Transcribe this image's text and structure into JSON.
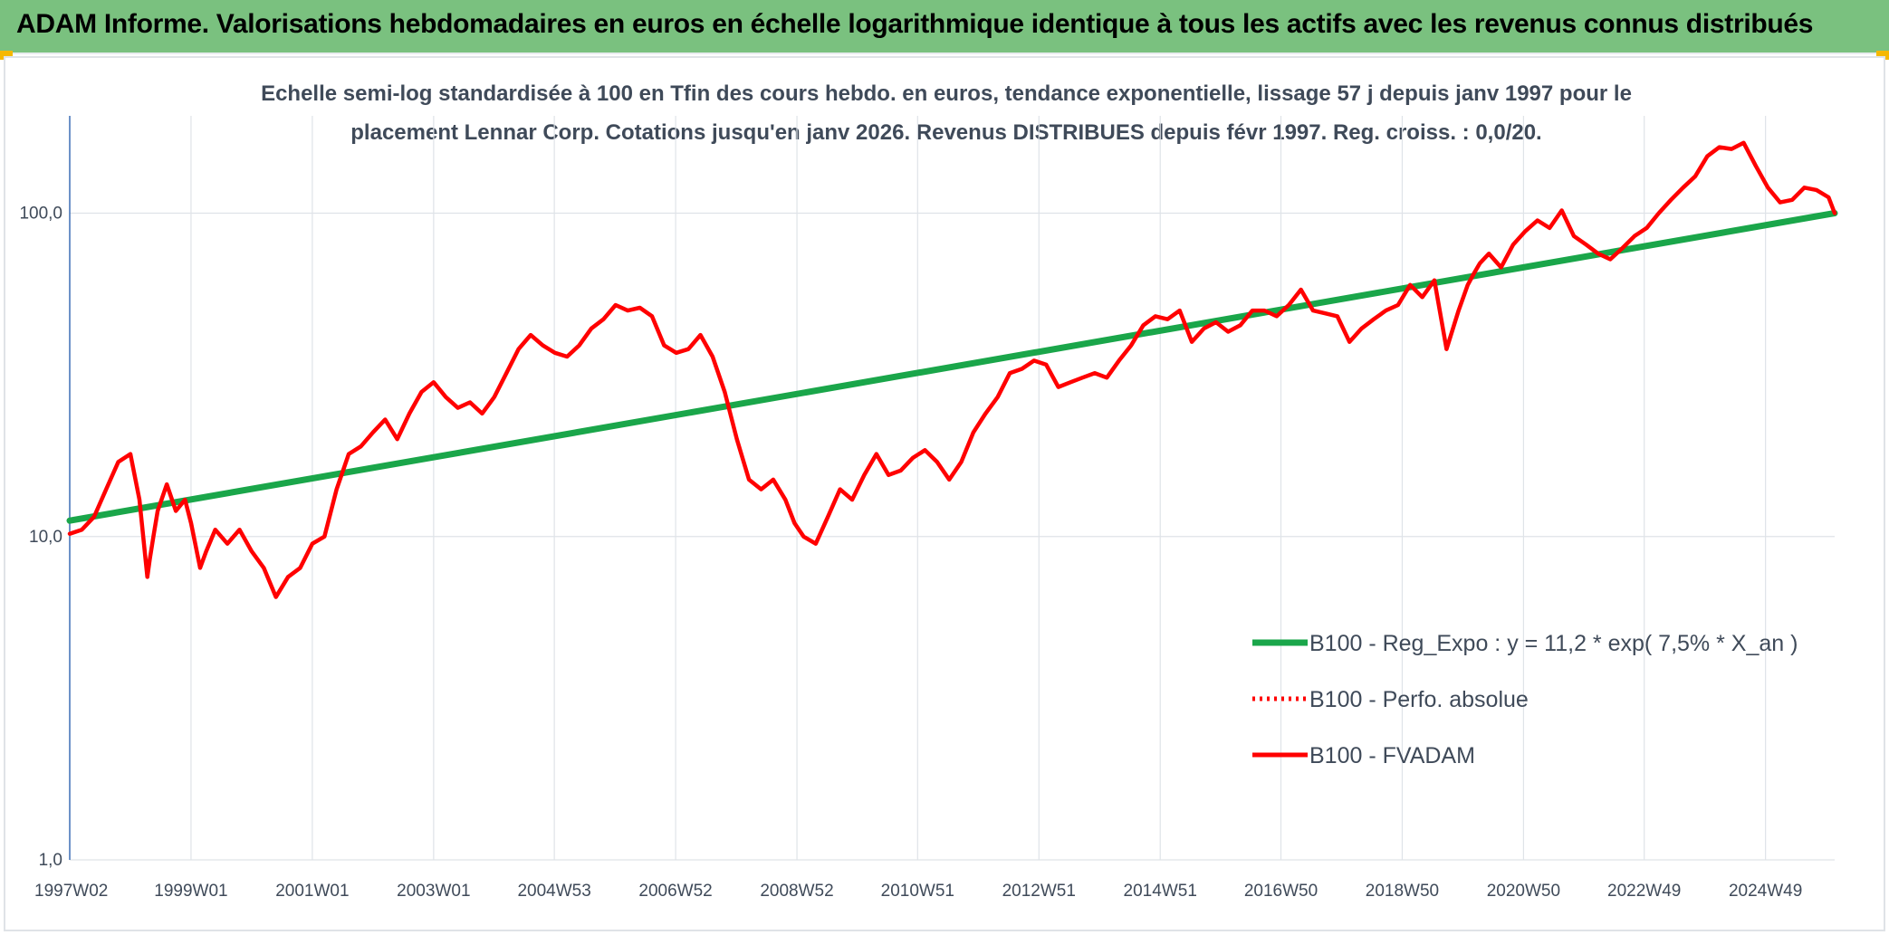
{
  "header": {
    "title": "ADAM Informe. Valorisations hebdomadaires en euros en échelle logarithmique identique à tous les actifs avec les revenus connus distribués",
    "background_color": "#7ac17f"
  },
  "chart_data": {
    "type": "line",
    "title_line1": "Echelle semi-log standardisée à 100 en Tfin des cours hebdo. en euros, tendance exponentielle, lissage 57 j depuis janv 1997 pour le",
    "title_line2": "placement Lennar Corp. Cotations jusqu'en janv 2026. Revenus DISTRIBUES depuis févr 1997. Reg. croiss. : 0,0/20.",
    "y_scale": "log",
    "ylim": [
      1,
      200
    ],
    "y_ticks": [
      {
        "value": 1,
        "label": "1,0"
      },
      {
        "value": 10,
        "label": "10,0"
      },
      {
        "value": 100,
        "label": "100,0"
      }
    ],
    "xlim": [
      1997.0,
      2026.1
    ],
    "x_ticks": [
      {
        "x": 1997.0,
        "label": "1997W02"
      },
      {
        "x": 1999.0,
        "label": "1999W01"
      },
      {
        "x": 2001.0,
        "label": "2001W01"
      },
      {
        "x": 2003.0,
        "label": "2003W01"
      },
      {
        "x": 2004.99,
        "label": "2004W53"
      },
      {
        "x": 2006.99,
        "label": "2006W52"
      },
      {
        "x": 2008.99,
        "label": "2008W52"
      },
      {
        "x": 2010.98,
        "label": "2010W51"
      },
      {
        "x": 2012.98,
        "label": "2012W51"
      },
      {
        "x": 2014.98,
        "label": "2014W51"
      },
      {
        "x": 2016.97,
        "label": "2016W50"
      },
      {
        "x": 2018.97,
        "label": "2018W50"
      },
      {
        "x": 2020.97,
        "label": "2020W50"
      },
      {
        "x": 2022.96,
        "label": "2022W49"
      },
      {
        "x": 2024.96,
        "label": "2024W49"
      }
    ],
    "grid": "vertical-and-horizontal",
    "legend_position": "lower-right",
    "series": [
      {
        "name": "B100 - Reg_Expo : y = 11,2 * exp( 7,5% *  X_an )",
        "color": "#1aa64a",
        "style": "solid",
        "x": [
          1997.0,
          2026.1
        ],
        "y": [
          11.2,
          100
        ]
      },
      {
        "name": "B100 - Perfo. absolue",
        "color": "#ff0000",
        "style": "dotted",
        "x": [],
        "y": []
      },
      {
        "name": "B100 - FVADAM",
        "color": "#ff0000",
        "style": "solid",
        "x": [
          1997.0,
          1997.2,
          1997.4,
          1997.6,
          1997.8,
          1998.0,
          1998.15,
          1998.28,
          1998.32,
          1998.38,
          1998.45,
          1998.6,
          1998.75,
          1998.9,
          1999.0,
          1999.15,
          1999.25,
          1999.4,
          1999.6,
          1999.8,
          2000.0,
          2000.2,
          2000.4,
          2000.6,
          2000.8,
          2001.0,
          2001.2,
          2001.4,
          2001.6,
          2001.8,
          2002.0,
          2002.2,
          2002.4,
          2002.6,
          2002.8,
          2003.0,
          2003.2,
          2003.4,
          2003.6,
          2003.8,
          2004.0,
          2004.2,
          2004.4,
          2004.6,
          2004.8,
          2005.0,
          2005.2,
          2005.4,
          2005.6,
          2005.8,
          2006.0,
          2006.2,
          2006.4,
          2006.6,
          2006.8,
          2007.0,
          2007.2,
          2007.4,
          2007.6,
          2007.8,
          2008.0,
          2008.2,
          2008.4,
          2008.6,
          2008.8,
          2008.95,
          2009.1,
          2009.3,
          2009.5,
          2009.7,
          2009.9,
          2010.1,
          2010.3,
          2010.5,
          2010.7,
          2010.9,
          2011.1,
          2011.3,
          2011.5,
          2011.7,
          2011.9,
          2012.1,
          2012.3,
          2012.5,
          2012.7,
          2012.9,
          2013.1,
          2013.3,
          2013.5,
          2013.7,
          2013.9,
          2014.1,
          2014.3,
          2014.5,
          2014.7,
          2014.9,
          2015.1,
          2015.3,
          2015.5,
          2015.7,
          2015.9,
          2016.1,
          2016.3,
          2016.5,
          2016.7,
          2016.9,
          2017.1,
          2017.3,
          2017.5,
          2017.7,
          2017.9,
          2018.1,
          2018.3,
          2018.5,
          2018.7,
          2018.9,
          2019.1,
          2019.3,
          2019.5,
          2019.7,
          2019.9,
          2020.05,
          2020.15,
          2020.25,
          2020.4,
          2020.6,
          2020.8,
          2021.0,
          2021.2,
          2021.4,
          2021.6,
          2021.8,
          2022.0,
          2022.2,
          2022.4,
          2022.6,
          2022.8,
          2023.0,
          2023.2,
          2023.4,
          2023.6,
          2023.8,
          2024.0,
          2024.2,
          2024.4,
          2024.6,
          2024.8,
          2025.0,
          2025.2,
          2025.4,
          2025.6,
          2025.8,
          2026.0,
          2026.1
        ],
        "y": [
          10.2,
          10.5,
          11.5,
          14.0,
          17.0,
          18.0,
          13.0,
          7.5,
          8.5,
          10.0,
          12.0,
          14.5,
          12.0,
          13.0,
          11.0,
          8.0,
          9.0,
          10.5,
          9.5,
          10.5,
          9.0,
          8.0,
          6.5,
          7.5,
          8.0,
          9.5,
          10.0,
          14.0,
          18.0,
          19.0,
          21.0,
          23.0,
          20.0,
          24.0,
          28.0,
          30.0,
          27.0,
          25.0,
          26.0,
          24.0,
          27.0,
          32.0,
          38.0,
          42.0,
          39.0,
          37.0,
          36.0,
          39.0,
          44.0,
          47.0,
          52.0,
          50.0,
          51.0,
          48.0,
          39.0,
          37.0,
          38.0,
          42.0,
          36.0,
          28.0,
          20.0,
          15.0,
          14.0,
          15.0,
          13.0,
          11.0,
          10.0,
          9.5,
          11.5,
          14.0,
          13.0,
          15.5,
          18.0,
          15.5,
          16.0,
          17.5,
          18.5,
          17.0,
          15.0,
          17.0,
          21.0,
          24.0,
          27.0,
          32.0,
          33.0,
          35.0,
          34.0,
          29.0,
          30.0,
          31.0,
          32.0,
          31.0,
          35.0,
          39.0,
          45.0,
          48.0,
          47.0,
          50.0,
          40.0,
          44.0,
          46.0,
          43.0,
          45.0,
          50.0,
          50.0,
          48.0,
          52.0,
          58.0,
          50.0,
          49.0,
          48.0,
          40.0,
          44.0,
          47.0,
          50.0,
          52.0,
          60.0,
          55.0,
          62.0,
          38.0,
          50.0,
          60.0,
          65.0,
          70.0,
          75.0,
          68.0,
          80.0,
          88.0,
          95.0,
          90.0,
          102.0,
          85.0,
          80.0,
          75.0,
          72.0,
          78.0,
          85.0,
          90.0,
          100.0,
          110.0,
          120.0,
          130.0,
          150.0,
          160.0,
          158.0,
          165.0,
          140.0,
          120.0,
          108.0,
          110.0,
          120.0,
          118.0,
          112.0,
          100.0
        ]
      }
    ]
  }
}
